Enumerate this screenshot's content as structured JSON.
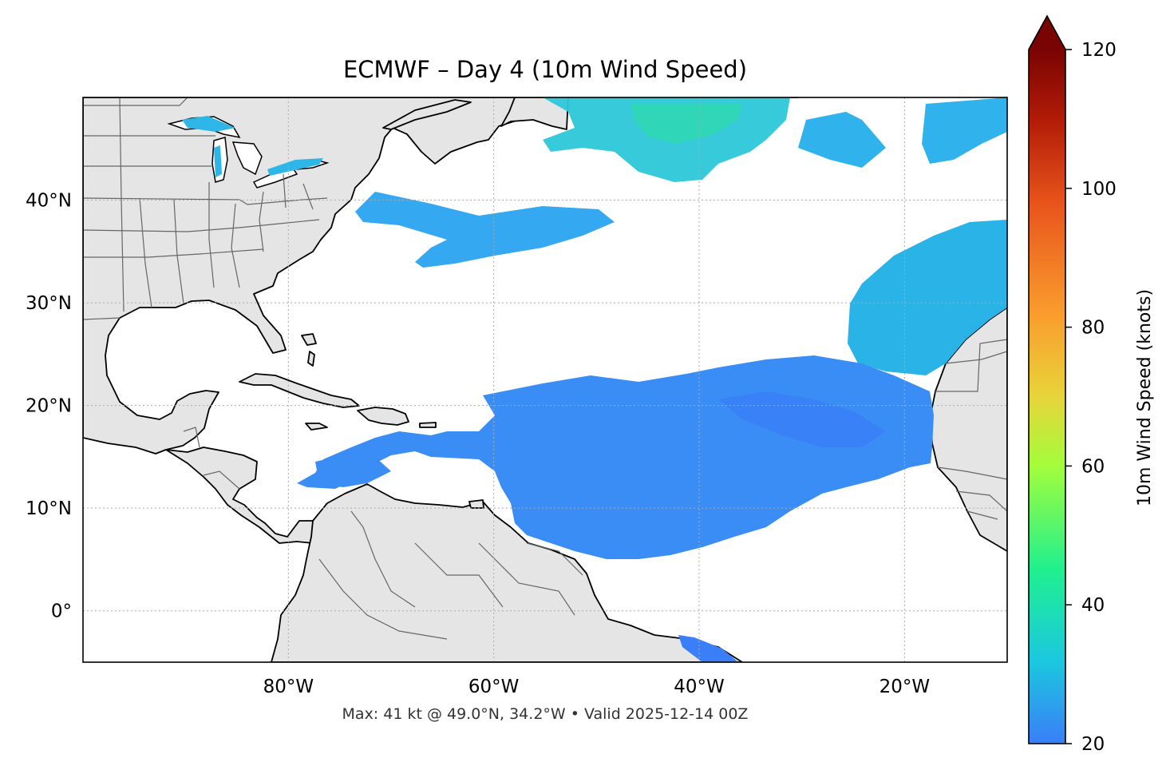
{
  "title": "ECMWF – Day 4 (10m Wind Speed)",
  "footer": "Max: 41 kt @ 49.0°N, 34.2°W • Valid 2025-12-14 00Z",
  "map": {
    "lon_range": [
      -100,
      -10
    ],
    "lat_range": [
      -5,
      50
    ],
    "lon_ticks": [
      {
        "value": -80,
        "label": "80°W"
      },
      {
        "value": -60,
        "label": "60°W"
      },
      {
        "value": -40,
        "label": "40°W"
      },
      {
        "value": -20,
        "label": "20°W"
      }
    ],
    "lat_ticks": [
      {
        "value": 40,
        "label": "40°N"
      },
      {
        "value": 30,
        "label": "30°N"
      },
      {
        "value": 20,
        "label": "20°N"
      },
      {
        "value": 10,
        "label": "10°N"
      },
      {
        "value": 0,
        "label": "0°"
      }
    ],
    "gridlines": true,
    "land_color": "#e5e5e5",
    "coast_color": "#000000",
    "border_color": "#666666"
  },
  "colorbar": {
    "label": "10m Wind Speed (knots)",
    "min": 20,
    "max": 120,
    "extend": "max",
    "ticks": [
      {
        "value": 20,
        "label": "20"
      },
      {
        "value": 40,
        "label": "40"
      },
      {
        "value": 60,
        "label": "60"
      },
      {
        "value": 80,
        "label": "80"
      },
      {
        "value": 100,
        "label": "100"
      },
      {
        "value": 120,
        "label": "120"
      }
    ],
    "colormap": [
      "#3a7ef8",
      "#1bc8df",
      "#1ff08f",
      "#a3fd3b",
      "#e8d43a",
      "#fa9c2d",
      "#e8531b",
      "#b11b07",
      "#7a0403"
    ]
  },
  "max_point": {
    "lat": 49.0,
    "lon": -34.2,
    "value": 41
  }
}
